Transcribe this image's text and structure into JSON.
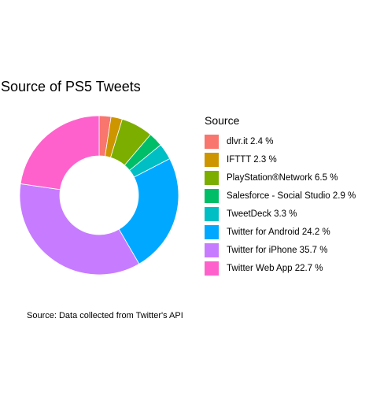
{
  "chart_data": {
    "type": "pie",
    "donut": true,
    "title": "Source of PS5 Tweets",
    "legend_title": "Source",
    "legend_position": "right",
    "caption": "Source: Data collected from Twitter's API",
    "categories": [
      "dlvr.it",
      "IFTTT",
      "PlayStation®Network",
      "Salesforce - Social Studio",
      "TweetDeck",
      "Twitter for Android",
      "Twitter for iPhone",
      "Twitter Web App"
    ],
    "values": [
      2.4,
      2.3,
      6.5,
      2.9,
      3.3,
      24.2,
      35.7,
      22.7
    ],
    "legend_labels": [
      "dlvr.it  2.4 %",
      "IFTTT  2.3 %",
      "PlayStation®Network  6.5 %",
      "Salesforce - Social Studio  2.9 %",
      "TweetDeck  3.3 %",
      "Twitter for Android 24.2 %",
      "Twitter for iPhone 35.7 %",
      "Twitter Web App 22.7 %"
    ],
    "colors": [
      "#F8766D",
      "#CD9600",
      "#7CAE00",
      "#00BE67",
      "#00BFC4",
      "#00A9FF",
      "#C77CFF",
      "#FF61CC"
    ]
  }
}
